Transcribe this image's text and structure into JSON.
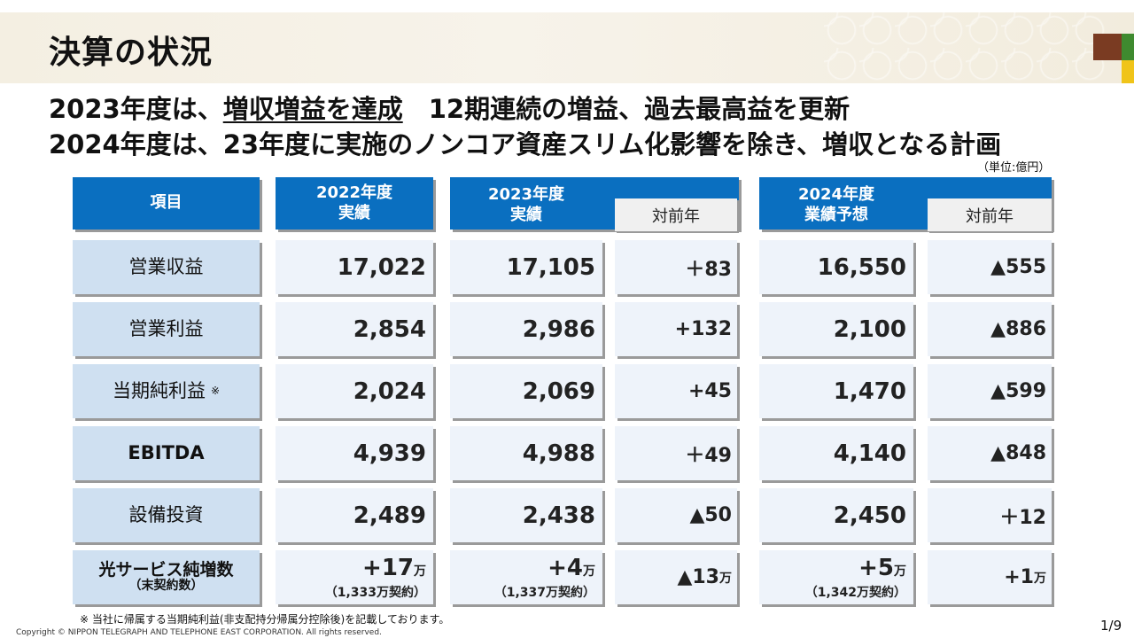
{
  "title": "決算の状況",
  "headline1": {
    "prefix": "2023年度は、",
    "underlined": "増収増益を達成",
    "suffix": "　12期連続の増益、過去最高益を更新"
  },
  "headline2": "2024年度は、23年度に実施のノンコア資産スリム化影響を除き、増収となる計画",
  "unit": "（単位:億円）",
  "columns": {
    "item": "項目",
    "fy2022": "2022年度\n実績",
    "fy2023": "2023年度\n実績",
    "fy2023_diff": "対前年",
    "fy2024": "2024年度\n業績予想",
    "fy2024_diff": "対前年"
  },
  "rows": [
    {
      "label": "営業収益",
      "fy2022": "17,022",
      "fy2023": "17,105",
      "diff2023": "＋83",
      "fy2024": "16,550",
      "diff2024": "▲555"
    },
    {
      "label": "営業利益",
      "fy2022": "2,854",
      "fy2023": "2,986",
      "diff2023": "+132",
      "fy2024": "2,100",
      "diff2024": "▲886"
    },
    {
      "label": "当期純利益",
      "note_mark": "※",
      "fy2022": "2,024",
      "fy2023": "2,069",
      "diff2023": "+45",
      "fy2024": "1,470",
      "diff2024": "▲599"
    },
    {
      "label": "EBITDA",
      "fy2022": "4,939",
      "fy2023": "4,988",
      "diff2023": "＋49",
      "fy2024": "4,140",
      "diff2024": "▲848"
    },
    {
      "label": "設備投資",
      "fy2022": "2,489",
      "fy2023": "2,438",
      "diff2023": "▲50",
      "fy2024": "2,450",
      "diff2024": "＋12"
    }
  ],
  "fiber_row": {
    "label": "光サービス純増数",
    "sublabel": "（末契約数）",
    "fy2022": "+17",
    "fy2022_unit": "万",
    "fy2022_sub": "（1,333万契約）",
    "fy2023": "+4",
    "fy2023_unit": "万",
    "fy2023_sub": "（1,337万契約）",
    "diff2023": "▲13",
    "diff2023_unit": "万",
    "fy2024": "+5",
    "fy2024_unit": "万",
    "fy2024_sub": "（1,342万契約）",
    "diff2024": "+1",
    "diff2024_unit": "万"
  },
  "footnote": "※ 当社に帰属する当期純利益(非支配持分帰属分控除後)を記載しております。",
  "copyright": "Copyright © NIPPON TELEGRAPH AND TELEPHONE EAST CORPORATION. All rights reserved.",
  "page_number": "1/9",
  "colors": {
    "header_blue": "#0a6fc0",
    "label_blue": "#cfe0f1",
    "value_bg": "#eef3fa"
  }
}
